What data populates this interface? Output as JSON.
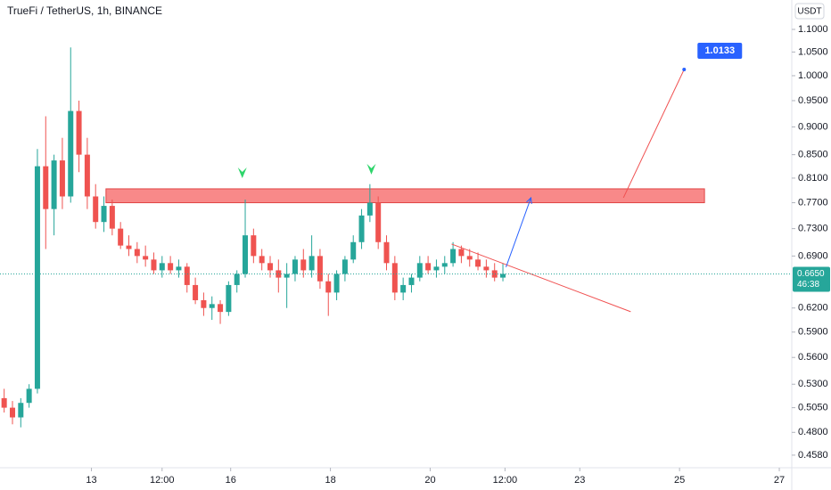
{
  "chart_data": {
    "type": "candlestick",
    "title": "TrueFi / TetherUS, 1h, BINANCE",
    "currency_button": "USDT",
    "log_scale": true,
    "grid": false,
    "up_color": "#26a69a",
    "down_color": "#ef5350",
    "xlim": [
      0,
      381
    ],
    "ylim": [
      0.4463,
      1.1686
    ],
    "xticks": [
      {
        "value": 44,
        "label": "13"
      },
      {
        "value": 78,
        "label": "12:00"
      },
      {
        "value": 111,
        "label": "16"
      },
      {
        "value": 159,
        "label": "18"
      },
      {
        "value": 207,
        "label": "20"
      },
      {
        "value": 243,
        "label": "12:00"
      },
      {
        "value": 279,
        "label": "23"
      },
      {
        "value": 327,
        "label": "25"
      },
      {
        "value": 375,
        "label": "27"
      }
    ],
    "yticks": [
      {
        "value": 1.1,
        "label": "1.1000"
      },
      {
        "value": 1.05,
        "label": "1.0500"
      },
      {
        "value": 1.0,
        "label": "1.0000"
      },
      {
        "value": 0.95,
        "label": "0.9500"
      },
      {
        "value": 0.9,
        "label": "0.9000"
      },
      {
        "value": 0.85,
        "label": "0.8500"
      },
      {
        "value": 0.81,
        "label": "0.8100"
      },
      {
        "value": 0.77,
        "label": "0.7700"
      },
      {
        "value": 0.73,
        "label": "0.7300"
      },
      {
        "value": 0.69,
        "label": "0.6900"
      },
      {
        "value": 0.62,
        "label": "0.6200"
      },
      {
        "value": 0.59,
        "label": "0.5900"
      },
      {
        "value": 0.56,
        "label": "0.5600"
      },
      {
        "value": 0.53,
        "label": "0.5300"
      },
      {
        "value": 0.505,
        "label": "0.5050"
      },
      {
        "value": 0.48,
        "label": "0.4800"
      },
      {
        "value": 0.458,
        "label": "0.4580"
      }
    ],
    "x": [
      2,
      6,
      10,
      14,
      18,
      22,
      26,
      30,
      34,
      38,
      42,
      46,
      50,
      54,
      58,
      62,
      66,
      70,
      74,
      78,
      82,
      86,
      90,
      94,
      98,
      102,
      106,
      110,
      114,
      118,
      122,
      126,
      130,
      134,
      138,
      142,
      146,
      150,
      154,
      158,
      162,
      166,
      170,
      174,
      178,
      182,
      186,
      190,
      194,
      198,
      202,
      206,
      210,
      214,
      218,
      222,
      226,
      230,
      234,
      238,
      242
    ],
    "open": [
      0.515,
      0.505,
      0.495,
      0.51,
      0.525,
      0.83,
      0.76,
      0.84,
      0.78,
      0.93,
      0.85,
      0.78,
      0.74,
      0.765,
      0.73,
      0.705,
      0.7,
      0.69,
      0.685,
      0.67,
      0.68,
      0.67,
      0.675,
      0.65,
      0.63,
      0.62,
      0.625,
      0.615,
      0.65,
      0.665,
      0.72,
      0.69,
      0.68,
      0.67,
      0.66,
      0.665,
      0.685,
      0.67,
      0.69,
      0.655,
      0.64,
      0.665,
      0.685,
      0.71,
      0.75,
      0.77,
      0.71,
      0.68,
      0.64,
      0.65,
      0.66,
      0.68,
      0.67,
      0.675,
      0.68,
      0.7,
      0.69,
      0.685,
      0.675,
      0.67,
      0.66
    ],
    "high": [
      0.525,
      0.512,
      0.515,
      0.53,
      0.86,
      0.92,
      0.85,
      0.88,
      1.06,
      0.95,
      0.88,
      0.8,
      0.78,
      0.775,
      0.74,
      0.72,
      0.71,
      0.705,
      0.695,
      0.69,
      0.69,
      0.685,
      0.68,
      0.66,
      0.64,
      0.635,
      0.63,
      0.655,
      0.67,
      0.775,
      0.73,
      0.7,
      0.69,
      0.685,
      0.68,
      0.69,
      0.7,
      0.72,
      0.7,
      0.665,
      0.67,
      0.69,
      0.72,
      0.76,
      0.8,
      0.78,
      0.72,
      0.69,
      0.66,
      0.665,
      0.69,
      0.69,
      0.685,
      0.69,
      0.71,
      0.705,
      0.7,
      0.695,
      0.685,
      0.68,
      0.68
    ],
    "low": [
      0.5,
      0.488,
      0.485,
      0.505,
      0.52,
      0.7,
      0.72,
      0.76,
      0.77,
      0.82,
      0.76,
      0.73,
      0.725,
      0.72,
      0.7,
      0.69,
      0.68,
      0.675,
      0.665,
      0.66,
      0.665,
      0.66,
      0.64,
      0.625,
      0.61,
      0.605,
      0.6,
      0.61,
      0.64,
      0.66,
      0.68,
      0.67,
      0.66,
      0.64,
      0.62,
      0.655,
      0.66,
      0.66,
      0.645,
      0.61,
      0.63,
      0.655,
      0.68,
      0.7,
      0.74,
      0.7,
      0.67,
      0.63,
      0.63,
      0.64,
      0.655,
      0.665,
      0.66,
      0.665,
      0.675,
      0.68,
      0.675,
      0.67,
      0.66,
      0.655,
      0.655
    ],
    "close": [
      0.505,
      0.495,
      0.51,
      0.525,
      0.83,
      0.76,
      0.84,
      0.78,
      0.93,
      0.85,
      0.78,
      0.74,
      0.765,
      0.73,
      0.705,
      0.7,
      0.69,
      0.685,
      0.67,
      0.68,
      0.67,
      0.675,
      0.65,
      0.63,
      0.62,
      0.625,
      0.615,
      0.65,
      0.665,
      0.72,
      0.69,
      0.68,
      0.67,
      0.66,
      0.665,
      0.685,
      0.67,
      0.69,
      0.655,
      0.64,
      0.665,
      0.685,
      0.71,
      0.75,
      0.77,
      0.71,
      0.68,
      0.64,
      0.65,
      0.66,
      0.68,
      0.67,
      0.675,
      0.68,
      0.7,
      0.69,
      0.685,
      0.675,
      0.67,
      0.66,
      0.665
    ],
    "last_price": {
      "value": 0.665,
      "label": "0.6650"
    },
    "countdown": "46:38",
    "annotations": {
      "zone": {
        "x": [
          51,
          339
        ],
        "y": [
          0.7923,
          0.77
        ],
        "color": "#f77c7c"
      },
      "markers": {
        "x": [
          116.6,
          178.7
        ],
        "y": [
          0.8174,
          0.8235
        ],
        "color": "#2ed56b"
      },
      "trend_line": {
        "x": [
          217.3,
          303.5
        ],
        "y": [
          0.7072,
          0.6153
        ],
        "color": "#f05050"
      },
      "projection_arrow": {
        "x": [
          243.5,
          255.5
        ],
        "y": [
          0.6744,
          0.7779
        ],
        "color": "#2962ff"
      },
      "target_line": {
        "x": [
          300,
          329.2
        ],
        "y": [
          0.7779,
          1.0129
        ],
        "color": "#f05050"
      },
      "target_label": 1.0133
    }
  }
}
